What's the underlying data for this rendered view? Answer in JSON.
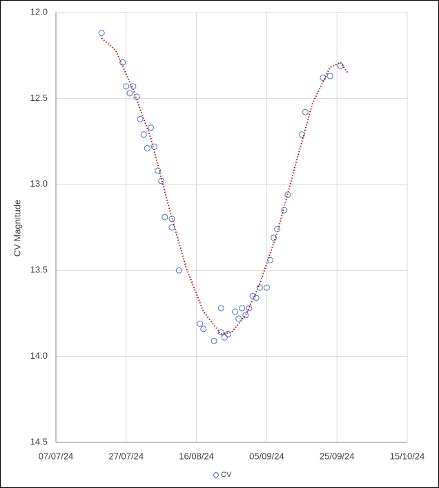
{
  "chart_data": {
    "type": "scatter",
    "y_label": "CV Magnitude",
    "y_inverted": true,
    "grid": true,
    "legend": "bottom",
    "xlim": [
      "2024-07-07",
      "2024-10-15"
    ],
    "xticks": [
      {
        "value": "2024-07-07",
        "label": "07/07/24"
      },
      {
        "value": "2024-07-27",
        "label": "27/07/24"
      },
      {
        "value": "2024-08-16",
        "label": "16/08/24"
      },
      {
        "value": "2024-09-05",
        "label": "05/09/24"
      },
      {
        "value": "2024-09-25",
        "label": "25/09/24"
      },
      {
        "value": "2024-10-15",
        "label": "15/10/24"
      }
    ],
    "ylim": [
      12.0,
      14.5
    ],
    "yticks": [
      {
        "value": 12.0,
        "label": "12.0"
      },
      {
        "value": 12.5,
        "label": "12.5"
      },
      {
        "value": 13.0,
        "label": "13.0"
      },
      {
        "value": 13.5,
        "label": "13.5"
      },
      {
        "value": 14.0,
        "label": "14.0"
      },
      {
        "value": 14.5,
        "label": "14.5"
      }
    ],
    "series": [
      {
        "name": "CV",
        "color": "#4472c4",
        "x": [
          "2024-07-20",
          "2024-07-26",
          "2024-07-27",
          "2024-07-28",
          "2024-07-29",
          "2024-07-30",
          "2024-07-31",
          "2024-08-01",
          "2024-08-02",
          "2024-08-03",
          "2024-08-04",
          "2024-08-05",
          "2024-08-06",
          "2024-08-07",
          "2024-08-09",
          "2024-08-09",
          "2024-08-11",
          "2024-08-17",
          "2024-08-18",
          "2024-08-21",
          "2024-08-23",
          "2024-08-23",
          "2024-08-24",
          "2024-08-25",
          "2024-08-27",
          "2024-08-28",
          "2024-08-29",
          "2024-08-30",
          "2024-08-31",
          "2024-09-01",
          "2024-09-02",
          "2024-09-03",
          "2024-09-05",
          "2024-09-06",
          "2024-09-07",
          "2024-09-08",
          "2024-09-10",
          "2024-09-11",
          "2024-09-15",
          "2024-09-16",
          "2024-09-21",
          "2024-09-23",
          "2024-09-26"
        ],
        "values": [
          12.12,
          12.29,
          12.43,
          12.47,
          12.43,
          12.49,
          12.62,
          12.71,
          12.79,
          12.67,
          12.78,
          12.92,
          12.98,
          13.19,
          13.25,
          13.2,
          13.5,
          13.81,
          13.84,
          13.91,
          13.72,
          13.86,
          13.89,
          13.87,
          13.74,
          13.78,
          13.72,
          13.76,
          13.72,
          13.65,
          13.66,
          13.6,
          13.6,
          13.44,
          13.31,
          13.26,
          13.15,
          13.06,
          12.71,
          12.58,
          12.38,
          12.37,
          12.31
        ]
      }
    ],
    "trendline": {
      "color": "#c00000",
      "x": [
        "2024-07-20",
        "2024-07-24",
        "2024-07-29",
        "2024-08-03",
        "2024-08-08",
        "2024-08-13",
        "2024-08-18",
        "2024-08-23",
        "2024-08-26",
        "2024-08-30",
        "2024-09-03",
        "2024-09-08",
        "2024-09-13",
        "2024-09-18",
        "2024-09-23",
        "2024-09-26",
        "2024-09-28"
      ],
      "values": [
        12.15,
        12.22,
        12.45,
        12.73,
        13.12,
        13.48,
        13.74,
        13.87,
        13.86,
        13.76,
        13.58,
        13.28,
        12.9,
        12.53,
        12.32,
        12.29,
        12.35
      ]
    }
  }
}
